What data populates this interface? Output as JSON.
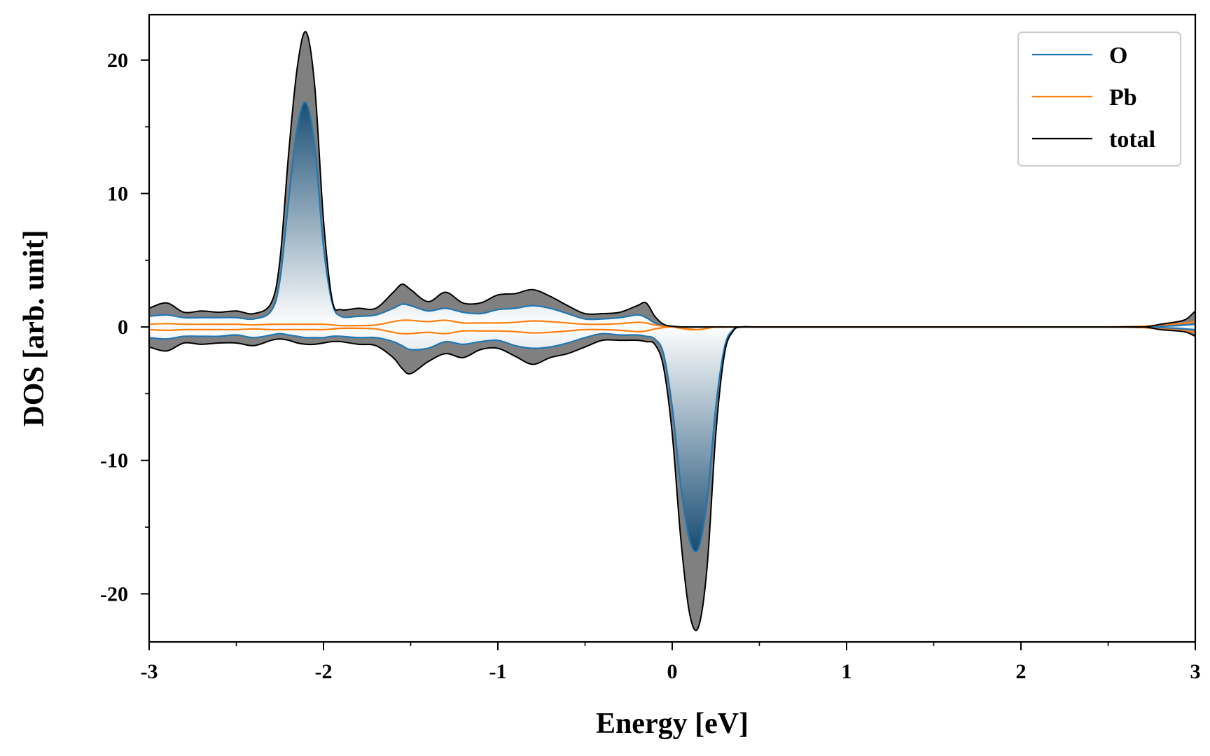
{
  "chart_data": {
    "type": "line",
    "title": "",
    "xlabel": "Energy [eV]",
    "ylabel": "DOS [arb. unit]",
    "xlim": [
      -3,
      3
    ],
    "ylim": [
      -23.6,
      23.4
    ],
    "x_ticks": [
      -3,
      -2,
      -1,
      0,
      1,
      2,
      3
    ],
    "x_tick_labels": [
      "-3",
      "-2",
      "-1",
      "0",
      "1",
      "2",
      "3"
    ],
    "y_ticks": [
      -20,
      -10,
      0,
      10,
      20
    ],
    "y_tick_labels": [
      "-20",
      "-10",
      "0",
      "10",
      "20"
    ],
    "x_minor_step": 0.5,
    "y_minor_step": 5,
    "grid": false,
    "legend_position": "top-right",
    "notes": "Spin-up plotted positive, spin-down negative. Total DOS filled grey, O partial DOS filled with a blue gradient.",
    "x": [
      -3.0,
      -2.9,
      -2.8,
      -2.7,
      -2.6,
      -2.5,
      -2.4,
      -2.3,
      -2.25,
      -2.2,
      -2.15,
      -2.1,
      -2.05,
      -2.0,
      -1.95,
      -1.9,
      -1.8,
      -1.7,
      -1.6,
      -1.55,
      -1.5,
      -1.4,
      -1.3,
      -1.2,
      -1.1,
      -1.0,
      -0.9,
      -0.8,
      -0.7,
      -0.6,
      -0.5,
      -0.4,
      -0.3,
      -0.2,
      -0.15,
      -0.1,
      -0.05,
      0.0,
      0.05,
      0.1,
      0.15,
      0.2,
      0.25,
      0.3,
      0.35,
      0.4,
      0.5,
      1.0,
      1.5,
      2.0,
      2.5,
      2.7,
      2.8,
      2.9,
      2.95,
      3.0
    ],
    "series": [
      {
        "name": "O",
        "color": "#1f77b4",
        "fill": "blue-gradient",
        "spin_up": [
          0.8,
          0.9,
          0.7,
          0.7,
          0.7,
          0.7,
          0.6,
          1.2,
          3.5,
          9.5,
          15.0,
          16.8,
          13.5,
          6.0,
          1.8,
          0.8,
          0.8,
          0.9,
          1.4,
          1.7,
          1.6,
          1.2,
          1.4,
          1.1,
          1.0,
          1.3,
          1.4,
          1.6,
          1.4,
          1.0,
          0.6,
          0.6,
          0.7,
          0.9,
          0.7,
          0.3,
          0.1,
          0.05,
          0.0,
          0.0,
          0.0,
          0.0,
          0.0,
          0.0,
          0.0,
          0.0,
          0.0,
          0.0,
          0.0,
          0.0,
          0.0,
          0.0,
          0.05,
          0.1,
          0.15,
          0.2
        ],
        "spin_down": [
          -0.8,
          -0.9,
          -0.7,
          -0.7,
          -0.7,
          -0.6,
          -0.8,
          -0.6,
          -0.5,
          -0.6,
          -0.7,
          -0.8,
          -0.8,
          -0.8,
          -0.7,
          -0.7,
          -0.8,
          -0.8,
          -1.1,
          -1.4,
          -1.7,
          -1.6,
          -1.1,
          -1.3,
          -1.1,
          -1.0,
          -1.4,
          -1.6,
          -1.5,
          -1.2,
          -0.8,
          -0.5,
          -0.6,
          -0.6,
          -0.7,
          -0.9,
          -2.0,
          -6.0,
          -12.0,
          -16.0,
          -16.6,
          -13.0,
          -6.0,
          -1.5,
          -0.2,
          0.0,
          0.0,
          0.0,
          0.0,
          0.0,
          0.0,
          0.0,
          -0.05,
          -0.1,
          -0.15,
          -0.2
        ]
      },
      {
        "name": "Pb",
        "color": "#ff7f0e",
        "fill": "none",
        "spin_up": [
          0.2,
          0.25,
          0.2,
          0.2,
          0.2,
          0.2,
          0.15,
          0.2,
          0.2,
          0.2,
          0.2,
          0.2,
          0.2,
          0.2,
          0.15,
          0.1,
          0.1,
          0.15,
          0.4,
          0.5,
          0.5,
          0.4,
          0.5,
          0.3,
          0.3,
          0.3,
          0.35,
          0.45,
          0.4,
          0.3,
          0.2,
          0.2,
          0.25,
          0.35,
          0.3,
          0.15,
          0.05,
          0.0,
          -0.1,
          -0.2,
          -0.2,
          -0.1,
          0.0,
          0.0,
          0.0,
          0.0,
          0.0,
          0.0,
          0.0,
          0.0,
          0.0,
          0.05,
          0.15,
          0.25,
          0.3,
          0.4
        ],
        "spin_down": [
          -0.2,
          -0.25,
          -0.2,
          -0.2,
          -0.2,
          -0.2,
          -0.15,
          -0.2,
          -0.2,
          -0.2,
          -0.2,
          -0.2,
          -0.2,
          -0.2,
          -0.15,
          -0.1,
          -0.1,
          -0.15,
          -0.4,
          -0.5,
          -0.5,
          -0.4,
          -0.5,
          -0.3,
          -0.3,
          -0.3,
          -0.35,
          -0.45,
          -0.4,
          -0.3,
          -0.2,
          -0.2,
          -0.25,
          -0.35,
          -0.3,
          -0.15,
          -0.05,
          0.0,
          -0.1,
          -0.15,
          -0.2,
          -0.1,
          0.0,
          0.0,
          0.0,
          0.0,
          0.0,
          0.0,
          0.0,
          0.0,
          0.0,
          -0.05,
          -0.15,
          -0.25,
          -0.3,
          -0.4
        ]
      },
      {
        "name": "total",
        "color": "#000000",
        "fill": "grey",
        "spin_up": [
          1.4,
          1.8,
          1.1,
          1.2,
          1.1,
          1.2,
          1.0,
          1.8,
          5.0,
          13.0,
          19.5,
          22.1,
          18.0,
          8.0,
          2.0,
          1.3,
          1.4,
          1.4,
          2.6,
          3.2,
          2.8,
          1.9,
          2.6,
          1.8,
          1.8,
          2.4,
          2.5,
          2.8,
          2.3,
          1.6,
          1.0,
          1.0,
          1.1,
          1.6,
          1.8,
          0.8,
          0.2,
          0.05,
          0.0,
          0.0,
          0.0,
          0.0,
          0.0,
          0.0,
          0.0,
          0.0,
          0.0,
          0.0,
          0.0,
          0.0,
          0.0,
          0.0,
          0.2,
          0.4,
          0.6,
          1.2
        ],
        "spin_down": [
          -1.5,
          -1.8,
          -1.2,
          -1.3,
          -1.2,
          -1.2,
          -1.4,
          -1.0,
          -0.9,
          -1.0,
          -1.2,
          -1.3,
          -1.3,
          -1.2,
          -1.1,
          -1.1,
          -1.3,
          -1.4,
          -2.3,
          -3.1,
          -3.5,
          -2.6,
          -2.0,
          -2.3,
          -1.7,
          -1.6,
          -2.2,
          -2.8,
          -2.3,
          -2.0,
          -1.5,
          -1.0,
          -1.0,
          -1.0,
          -1.1,
          -1.3,
          -3.0,
          -8.0,
          -16.0,
          -21.5,
          -22.5,
          -18.0,
          -8.0,
          -2.0,
          -0.3,
          0.0,
          0.0,
          0.0,
          0.0,
          0.0,
          0.0,
          0.0,
          -0.2,
          -0.3,
          -0.4,
          -0.7
        ]
      }
    ]
  }
}
